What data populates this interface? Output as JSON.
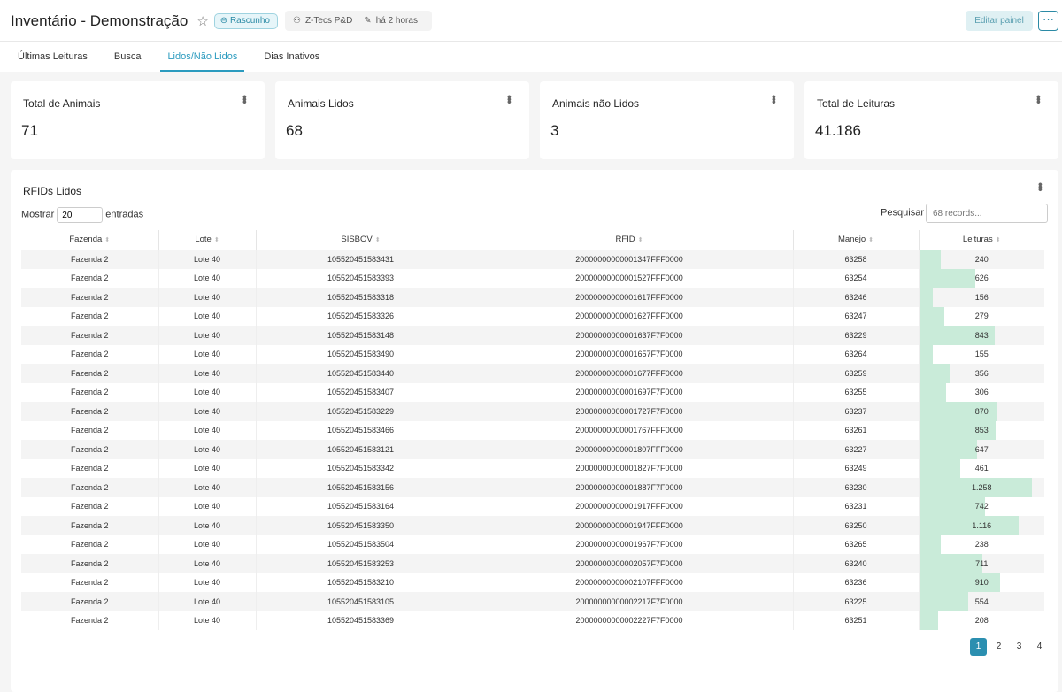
{
  "header": {
    "title": "Inventário - Demonstração",
    "status": "Rascunho",
    "owner": "Z-Tecs P&D",
    "modified": "há 2 horas",
    "edit_label": "Editar painel",
    "more_label": "···"
  },
  "tabs": [
    {
      "label": "Últimas Leituras"
    },
    {
      "label": "Busca"
    },
    {
      "label": "Lidos/Não Lidos",
      "active": true
    },
    {
      "label": "Dias Inativos"
    }
  ],
  "cards": [
    {
      "label": "Total de Animais",
      "value": "71"
    },
    {
      "label": "Animais Lidos",
      "value": "68"
    },
    {
      "label": "Animais não Lidos",
      "value": "3"
    },
    {
      "label": "Total de Leituras",
      "value": "41.186"
    }
  ],
  "table": {
    "title": "RFIDs Lidos",
    "show_label": "Mostrar",
    "page_size": "20",
    "entries_label": "entradas",
    "search_label": "Pesquisar",
    "search_placeholder": "68 records...",
    "columns": [
      "Fazenda",
      "Lote",
      "SISBOV",
      "RFID",
      "Manejo",
      "Leituras"
    ],
    "bar_color": "#c9ebd9",
    "rows": [
      [
        "Fazenda 2",
        "Lote 40",
        "105520451583431",
        "20000000000001347FFF0000",
        "63258",
        "240"
      ],
      [
        "Fazenda 2",
        "Lote 40",
        "105520451583393",
        "20000000000001527FFF0000",
        "63254",
        "626"
      ],
      [
        "Fazenda 2",
        "Lote 40",
        "105520451583318",
        "20000000000001617FFF0000",
        "63246",
        "156"
      ],
      [
        "Fazenda 2",
        "Lote 40",
        "105520451583326",
        "20000000000001627FFF0000",
        "63247",
        "279"
      ],
      [
        "Fazenda 2",
        "Lote 40",
        "105520451583148",
        "20000000000001637F7F0000",
        "63229",
        "843"
      ],
      [
        "Fazenda 2",
        "Lote 40",
        "105520451583490",
        "20000000000001657F7F0000",
        "63264",
        "155"
      ],
      [
        "Fazenda 2",
        "Lote 40",
        "105520451583440",
        "20000000000001677FFF0000",
        "63259",
        "356"
      ],
      [
        "Fazenda 2",
        "Lote 40",
        "105520451583407",
        "20000000000001697F7F0000",
        "63255",
        "306"
      ],
      [
        "Fazenda 2",
        "Lote 40",
        "105520451583229",
        "20000000000001727F7F0000",
        "63237",
        "870"
      ],
      [
        "Fazenda 2",
        "Lote 40",
        "105520451583466",
        "20000000000001767FFF0000",
        "63261",
        "853"
      ],
      [
        "Fazenda 2",
        "Lote 40",
        "105520451583121",
        "20000000000001807FFF0000",
        "63227",
        "647"
      ],
      [
        "Fazenda 2",
        "Lote 40",
        "105520451583342",
        "20000000000001827F7F0000",
        "63249",
        "461"
      ],
      [
        "Fazenda 2",
        "Lote 40",
        "105520451583156",
        "20000000000001887F7F0000",
        "63230",
        "1.258"
      ],
      [
        "Fazenda 2",
        "Lote 40",
        "105520451583164",
        "20000000000001917FFF0000",
        "63231",
        "742"
      ],
      [
        "Fazenda 2",
        "Lote 40",
        "105520451583350",
        "20000000000001947FFF0000",
        "63250",
        "1.116"
      ],
      [
        "Fazenda 2",
        "Lote 40",
        "105520451583504",
        "20000000000001967F7F0000",
        "63265",
        "238"
      ],
      [
        "Fazenda 2",
        "Lote 40",
        "105520451583253",
        "20000000000002057F7F0000",
        "63240",
        "711"
      ],
      [
        "Fazenda 2",
        "Lote 40",
        "105520451583210",
        "20000000000002107FFF0000",
        "63236",
        "910"
      ],
      [
        "Fazenda 2",
        "Lote 40",
        "105520451583105",
        "20000000000002217F7F0000",
        "63225",
        "554"
      ],
      [
        "Fazenda 2",
        "Lote 40",
        "105520451583369",
        "20000000000002227F7F0000",
        "63251",
        "208"
      ]
    ],
    "pages": [
      "1",
      "2",
      "3",
      "4"
    ],
    "current_page": "1"
  }
}
